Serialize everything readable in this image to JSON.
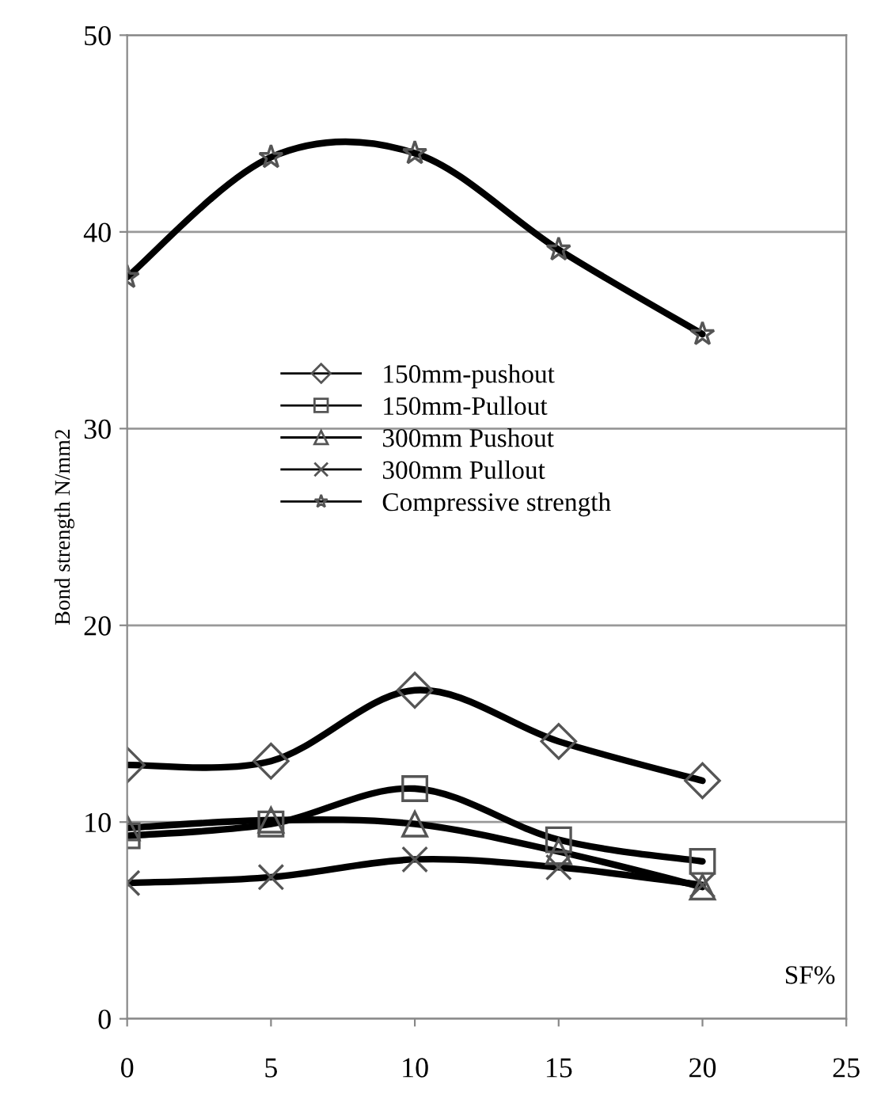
{
  "chart_data": {
    "type": "line",
    "xlabel": "SF%",
    "ylabel": "Bond strength N/mm2",
    "x": [
      0,
      5,
      10,
      15,
      20
    ],
    "series": [
      {
        "name": "150mm-pushout",
        "color": "#000000",
        "marker": "diamond",
        "values": [
          12.9,
          13.1,
          16.7,
          14.1,
          12.1
        ]
      },
      {
        "name": "150mm-Pullout",
        "color": "#000000",
        "marker": "square",
        "values": [
          9.3,
          9.9,
          11.7,
          9.1,
          8.0
        ]
      },
      {
        "name": "300mm Pushout",
        "color": "#000000",
        "marker": "triangle",
        "values": [
          9.7,
          10.1,
          9.9,
          8.5,
          6.7
        ]
      },
      {
        "name": "300mm Pullout",
        "color": "#000000",
        "marker": "cross",
        "values": [
          6.9,
          7.2,
          8.1,
          7.7,
          6.8
        ]
      },
      {
        "name": "Compressive strength",
        "color": "#000000",
        "marker": "star",
        "values": [
          37.7,
          43.8,
          44.0,
          39.1,
          34.8
        ]
      }
    ],
    "xlim": [
      0,
      25
    ],
    "xticks": [
      0,
      5,
      10,
      15,
      20,
      25
    ],
    "ylim": [
      0,
      50
    ],
    "yticks": [
      0,
      10,
      20,
      30,
      40,
      50
    ],
    "grid": "y",
    "legend": "center",
    "line_style": "solid"
  }
}
